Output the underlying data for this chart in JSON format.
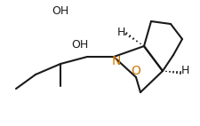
{
  "bg_color": "#ffffff",
  "line_color": "#1a1a1a",
  "atom_colors": {
    "O": "#cc7000",
    "N": "#cc7000",
    "H": "#1a1a1a",
    "OH": "#1a1a1a"
  },
  "lw": 1.5,
  "figsize": [
    2.25,
    1.42
  ],
  "dpi": 100
}
